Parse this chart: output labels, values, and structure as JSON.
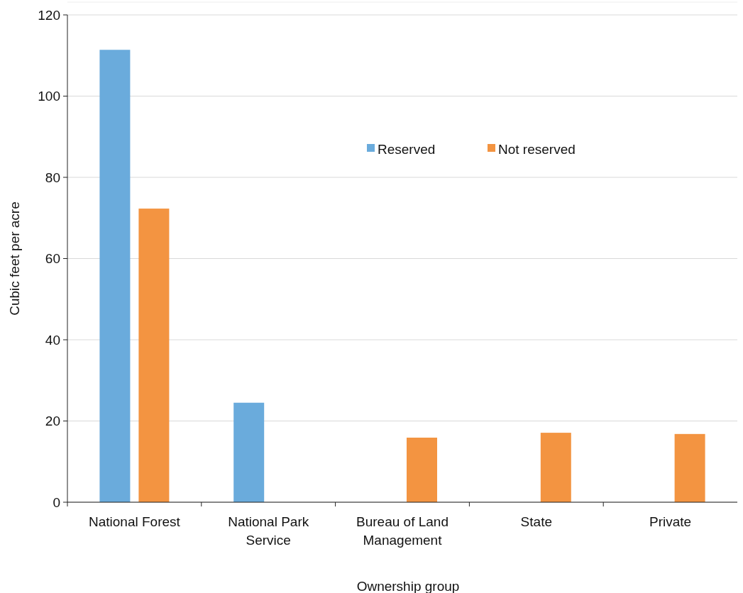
{
  "chart_data": {
    "type": "bar",
    "xlabel": "Ownership group",
    "ylabel": "Cubic feet per acre",
    "categories": [
      "National Forest",
      "National Park Service",
      "Bureau of Land Management",
      "State",
      "Private"
    ],
    "series": [
      {
        "name": "Reserved",
        "color": "#6aabdc",
        "values": [
          111.4,
          24.5,
          null,
          null,
          null
        ]
      },
      {
        "name": "Not reserved",
        "color": "#f39441",
        "values": [
          72.3,
          null,
          15.9,
          17.1,
          16.8
        ]
      }
    ],
    "ylim": [
      0,
      120
    ],
    "yticks": [
      0,
      20,
      40,
      60,
      80,
      100,
      120
    ],
    "grid": "y",
    "legend": "top"
  }
}
